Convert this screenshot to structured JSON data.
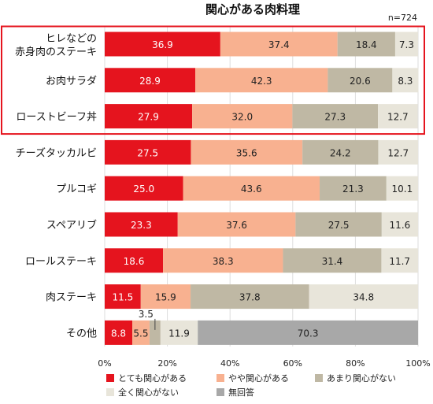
{
  "chart_data": {
    "type": "bar",
    "orientation": "horizontal-stacked",
    "title": "関心がある肉料理",
    "note": "n=724",
    "categories": [
      [
        "ヒレなどの",
        "赤身肉のステーキ"
      ],
      [
        "お肉サラダ"
      ],
      [
        "ローストビーフ丼"
      ],
      [
        "チーズタッカルビ"
      ],
      [
        "プルコギ"
      ],
      [
        "スペアリブ"
      ],
      [
        "ロールステーキ"
      ],
      [
        "肉ステーキ"
      ],
      [
        "その他"
      ]
    ],
    "series": [
      {
        "name": "とても関心がある",
        "color": "#e5141e",
        "values": [
          36.9,
          28.9,
          27.9,
          27.5,
          25.0,
          23.3,
          18.6,
          11.5,
          8.8
        ]
      },
      {
        "name": "やや関心がある",
        "color": "#f8b190",
        "values": [
          37.4,
          42.3,
          32.0,
          35.6,
          43.6,
          37.6,
          38.3,
          15.9,
          5.5
        ]
      },
      {
        "name": "あまり関心がない",
        "color": "#bfb8a4",
        "values": [
          18.4,
          20.6,
          27.3,
          24.2,
          21.3,
          27.5,
          31.4,
          37.8,
          3.5
        ]
      },
      {
        "name": "全く関心がない",
        "color": "#e8e5da",
        "values": [
          7.3,
          8.3,
          12.7,
          12.7,
          10.1,
          11.6,
          11.7,
          34.8,
          11.9
        ]
      },
      {
        "name": "無回答",
        "color": "#a8a8a8",
        "values": [
          null,
          null,
          null,
          null,
          null,
          null,
          null,
          null,
          70.3
        ]
      }
    ],
    "value_labels": [
      [
        "36.9",
        "37.4",
        "18.4",
        "7.3",
        ""
      ],
      [
        "28.9",
        "42.3",
        "20.6",
        "8.3",
        ""
      ],
      [
        "27.9",
        "32.0",
        "27.3",
        "12.7",
        ""
      ],
      [
        "27.5",
        "35.6",
        "24.2",
        "12.7",
        ""
      ],
      [
        "25.0",
        "43.6",
        "21.3",
        "10.1",
        ""
      ],
      [
        "23.3",
        "37.6",
        "27.5",
        "11.6",
        ""
      ],
      [
        "18.6",
        "38.3",
        "31.4",
        "11.7",
        ""
      ],
      [
        "11.5",
        "15.9",
        "37.8",
        "34.8",
        ""
      ],
      [
        "8.8",
        "5.5",
        "3.5",
        "11.9",
        "70.3"
      ]
    ],
    "xlim": [
      0,
      100
    ],
    "xticks": [
      "0%",
      "20%",
      "40%",
      "60%",
      "80%",
      "100%"
    ],
    "highlight_rows": [
      0,
      1,
      2
    ],
    "highlight_color": "#e5141e",
    "legend_position": "bottom"
  }
}
